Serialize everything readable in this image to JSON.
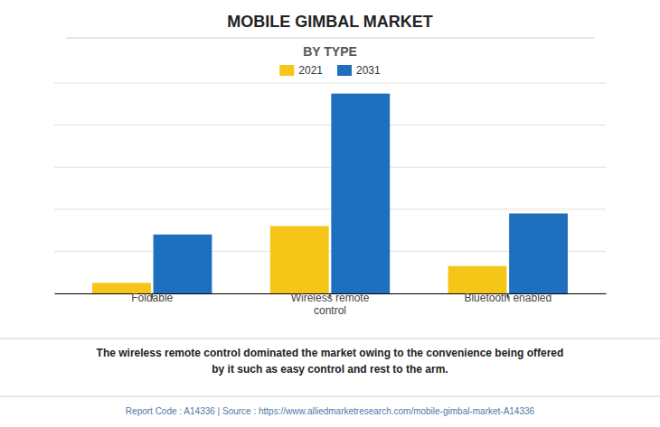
{
  "chart_data": {
    "type": "bar",
    "title": "MOBILE GIMBAL MARKET",
    "subtitle": "BY TYPE",
    "categories": [
      "Foldable",
      "Wireless remote\ncontrol",
      "Bluetooth enabled"
    ],
    "series": [
      {
        "name": "2021",
        "color": "#F5C518",
        "values": [
          0.5,
          3.2,
          1.3
        ]
      },
      {
        "name": "2031",
        "color": "#1F6FBF",
        "values": [
          2.8,
          9.5,
          3.8
        ]
      }
    ],
    "ylim": [
      0,
      10
    ],
    "yticks": [
      0,
      2,
      4,
      6,
      8,
      10
    ],
    "grid": true,
    "tick_labels": "x",
    "legend": "upper center",
    "annotations": [
      "The wireless remote control dominated the market owing to the convenience being offered\nby it such as easy control and rest to the arm.",
      "Report Code : A14336  |  Source : https://www.alliedmarketresearch.com/mobile-gimbal-market-A14336"
    ]
  }
}
